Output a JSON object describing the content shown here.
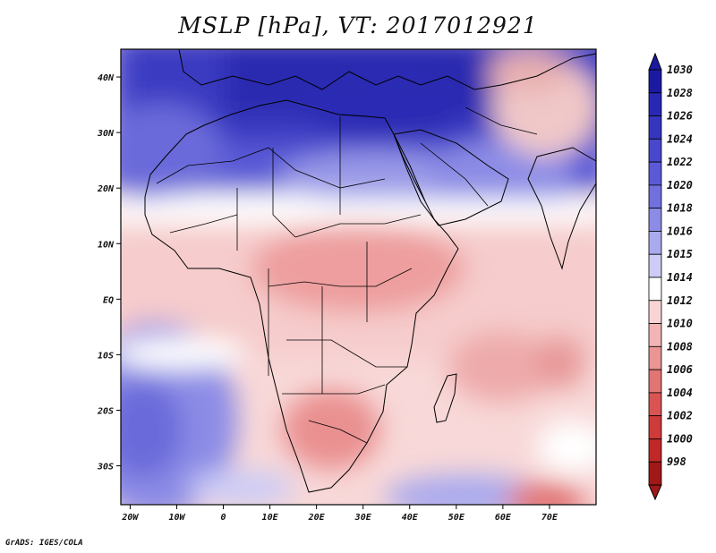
{
  "title": "MSLP [hPa], VT: 2017012921",
  "credit": "GrADS: IGES/COLA",
  "map": {
    "lon_range": [
      -22,
      80
    ],
    "lat_range": [
      -37,
      45
    ],
    "lon_ticks": [
      {
        "lon": -20,
        "label": "20W"
      },
      {
        "lon": -10,
        "label": "10W"
      },
      {
        "lon": 0,
        "label": "0"
      },
      {
        "lon": 10,
        "label": "10E"
      },
      {
        "lon": 20,
        "label": "20E"
      },
      {
        "lon": 30,
        "label": "30E"
      },
      {
        "lon": 40,
        "label": "40E"
      },
      {
        "lon": 50,
        "label": "50E"
      },
      {
        "lon": 60,
        "label": "60E"
      },
      {
        "lon": 70,
        "label": "70E"
      }
    ],
    "lat_ticks": [
      {
        "lat": 40,
        "label": "40N"
      },
      {
        "lat": 30,
        "label": "30N"
      },
      {
        "lat": 20,
        "label": "20N"
      },
      {
        "lat": 10,
        "label": "10N"
      },
      {
        "lat": 0,
        "label": "EQ"
      },
      {
        "lat": -10,
        "label": "10S"
      },
      {
        "lat": -20,
        "label": "20S"
      },
      {
        "lat": -30,
        "label": "30S"
      }
    ]
  },
  "colorbar": {
    "levels": [
      "1030",
      "1028",
      "1026",
      "1024",
      "1022",
      "1020",
      "1018",
      "1016",
      "1015",
      "1014",
      "1012",
      "1010",
      "1008",
      "1006",
      "1004",
      "1002",
      "1000",
      "998"
    ],
    "colors": [
      "#1a1aa0",
      "#2828b4",
      "#3535c0",
      "#4848cc",
      "#5a5ad6",
      "#7070de",
      "#8c8ce6",
      "#aaaaee",
      "#ccccf6",
      "#ffffff",
      "#f8d4d4",
      "#f2b4b4",
      "#ea9494",
      "#e27474",
      "#da5454",
      "#cf3a3a",
      "#c02828",
      "#a01818"
    ]
  }
}
